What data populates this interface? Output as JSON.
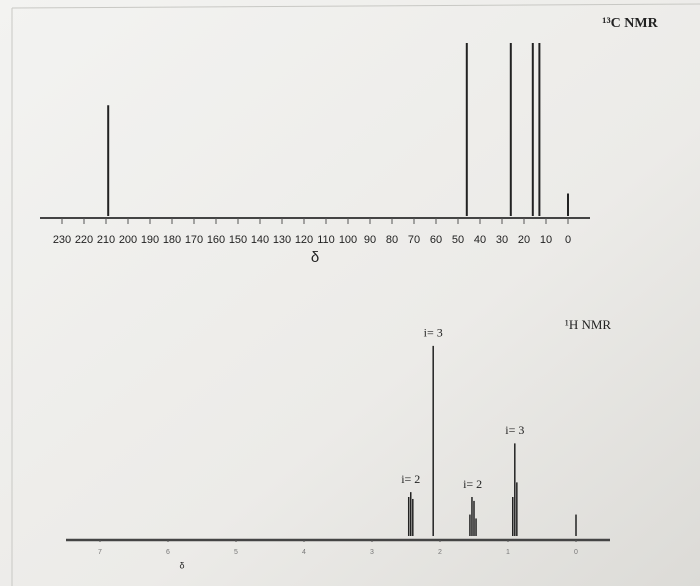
{
  "chart_data": [
    {
      "type": "stem",
      "title": "¹³C NMR",
      "x_label": "δ",
      "x": [
        209,
        46,
        26,
        16,
        13,
        0
      ],
      "values": [
        64,
        100,
        100,
        100,
        100,
        13
      ],
      "color": "#222",
      "xlim": [
        240,
        -10
      ],
      "ylim": [
        0,
        100
      ],
      "xticks": [
        230,
        220,
        210,
        200,
        190,
        180,
        170,
        160,
        150,
        140,
        130,
        120,
        110,
        100,
        90,
        80,
        70,
        60,
        50,
        40,
        30,
        20,
        10,
        0
      ]
    },
    {
      "type": "stem",
      "title": "¹H NMR",
      "x_label": "δ",
      "x": [
        2.46,
        2.43,
        2.4,
        2.1,
        1.56,
        1.53,
        1.5,
        1.47,
        0.93,
        0.9,
        0.87,
        0
      ],
      "values": [
        40,
        45,
        38,
        195,
        22,
        40,
        36,
        18,
        40,
        95,
        55,
        22
      ],
      "color": "#222",
      "xlim": [
        7.5,
        -0.5
      ],
      "ylim": [
        0,
        200
      ],
      "xticks": [
        7,
        6,
        5,
        4,
        3,
        2,
        1,
        0
      ],
      "annotations": [
        {
          "text": "i= 2",
          "x": 2.43
        },
        {
          "text": "i= 3",
          "x": 2.1
        },
        {
          "text": "i= 2",
          "x": 1.52
        },
        {
          "text": "i= 3",
          "x": 0.9
        }
      ]
    }
  ]
}
